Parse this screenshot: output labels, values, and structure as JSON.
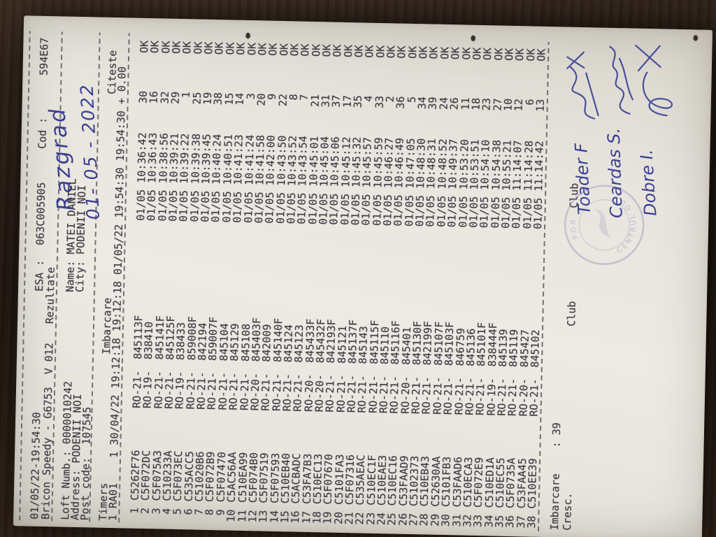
{
  "palette": {
    "table_wood": "#241a12",
    "paper": "#e8e5de",
    "print_ink": "#403e46",
    "pen_ink": "#3a3f93",
    "stamp_ink": "#8a84b4"
  },
  "header": {
    "datetime": "01/05/22-19:54:30",
    "esa_label": "ESA :",
    "esa_value": "063C005905",
    "cod_label": "Cod :",
    "cod_value": "594E67",
    "device_line": "Bricon Speedy - G6753  V 012   Rezultate",
    "loft_line": "Loft Numb.: 0000010242",
    "name_line": "Name: MATEI DANIEL",
    "address_line": "Address: PODENII NOI",
    "city_line": "City: PODENII NOI",
    "postcode_line": "Post code:  107545"
  },
  "timers": {
    "title": "Timers",
    "col_imbarcare": "Imbarcare",
    "col_citeste": "Citeste",
    "timer_row": "1 RA01    1 30/04/22 19:12:18 19:12:18 01/05/22 19:54:30 19:54:30 + 0.00"
  },
  "rows": [
    [
      "1",
      "C5262F76",
      "RO-21-",
      "845113F",
      "01/05 10:36:42",
      "30",
      "OK"
    ],
    [
      "2",
      "C5F072DC",
      "RO-19-",
      "838410",
      "01/05 10:36:43",
      "16",
      "OK"
    ],
    [
      "3",
      "C5F075A3",
      "RO-21-",
      "845141F",
      "01/05 10:38:56",
      "32",
      "OK"
    ],
    [
      "4",
      "C510233A",
      "RO-21-",
      "845125F",
      "01/05 10:39:21",
      "29",
      "OK"
    ],
    [
      "5",
      "C5F073EC",
      "RO-19-",
      "838433",
      "01/05 10:39:22",
      "1",
      "OK"
    ],
    [
      "6",
      "C535ACC5",
      "RO-21-",
      "859008F",
      "01/05 10:39:38",
      "25",
      "OK"
    ],
    [
      "7",
      "C51020B6",
      "RO-21-",
      "842194",
      "01/05 10:39:45",
      "19",
      "OK"
    ],
    [
      "8",
      "C5F072B9",
      "RO-21-",
      "859007F",
      "01/05 10:40:24",
      "38",
      "OK"
    ],
    [
      "9",
      "C5F07470",
      "RO-21-",
      "845104",
      "01/05 10:40:51",
      "15",
      "OK"
    ],
    [
      "10",
      "C5AC56AA",
      "RO-21-",
      "845129",
      "01/05 10:41:23",
      "14",
      "OK"
    ],
    [
      "11",
      "C510EA99",
      "RO-21-",
      "845108",
      "01/05 10:41:24",
      "3",
      "OK"
    ],
    [
      "12",
      "C5F074B0",
      "RO-20-",
      "845403F",
      "01/05 10:41:58",
      "20",
      "OK"
    ],
    [
      "13",
      "C5F07519",
      "RO-21-",
      "842009",
      "01/05 10:42:00",
      "9",
      "OK"
    ],
    [
      "14",
      "C5F07593",
      "RO-21-",
      "845140F",
      "01/05 10:43:50",
      "22",
      "OK"
    ],
    [
      "15",
      "C510EB40",
      "RO-21-",
      "845124",
      "01/05 10:43:52",
      "8",
      "OK"
    ],
    [
      "16",
      "C5ACBADC",
      "RO-21-",
      "845123",
      "01/05 10:43:54",
      "7",
      "OK"
    ],
    [
      "17",
      "C53FA7B3",
      "RO-20-",
      "845433F",
      "01/05 10:45:01",
      "21",
      "OK"
    ],
    [
      "18",
      "C510EC13",
      "RO-20-",
      "845432F",
      "01/05 10:45:04",
      "31",
      "OK"
    ],
    [
      "19",
      "C5F07670",
      "RO-21-",
      "842193F",
      "01/05 10:45:06",
      "37",
      "OK"
    ],
    [
      "20",
      "C5101FA3",
      "RO-21-",
      "845121",
      "01/05 10:45:12",
      "17",
      "OK"
    ],
    [
      "21",
      "C5F07316",
      "RO-21-",
      "845137F",
      "01/05 10:45:32",
      "35",
      "OK"
    ],
    [
      "22",
      "C535AEAC",
      "RO-21-",
      "845143",
      "01/05 10:45:57",
      "4",
      "OK"
    ],
    [
      "23",
      "C510EC1F",
      "RO-21-",
      "845115F",
      "01/05 10:45:59",
      "33",
      "OK"
    ],
    [
      "24",
      "C510EAE3",
      "RO-21-",
      "845110",
      "01/05 10:46:27",
      "2",
      "OK"
    ],
    [
      "25",
      "C510EC16",
      "RO-21-",
      "845116F",
      "01/05 10:46:49",
      "36",
      "OK"
    ],
    [
      "26",
      "C53FAAD9",
      "RO-20-",
      "845401",
      "01/05 10:47:05",
      "5",
      "OK"
    ],
    [
      "27",
      "C5102373",
      "RO-21-",
      "845130F",
      "01/05 10:48:30",
      "34",
      "OK"
    ],
    [
      "28",
      "C510EB43",
      "RO-21-",
      "842199F",
      "01/05 10:48:31",
      "39",
      "OK"
    ],
    [
      "29",
      "C52630AA",
      "RO-21-",
      "845107F",
      "01/05 10:48:52",
      "24",
      "OK"
    ],
    [
      "30",
      "C5101FB3",
      "RO-21-",
      "845103F",
      "01/05 10:49:37",
      "26",
      "OK"
    ],
    [
      "31",
      "C53FAAD6",
      "RO-21-",
      "846759",
      "01/05 10:53:20",
      "11",
      "OK"
    ],
    [
      "32",
      "C510ECA3",
      "RO-21-",
      "845136",
      "01/05 10:53:51",
      "18",
      "OK"
    ],
    [
      "33",
      "C5F072E9",
      "RO-21-",
      "845101F",
      "01/05 10:54:10",
      "23",
      "OK"
    ],
    [
      "34",
      "C510ED1A",
      "RO-19-",
      "838444F",
      "01/05 10:54:38",
      "27",
      "OK"
    ],
    [
      "35",
      "C510EC55",
      "RO-21-",
      "845139",
      "01/05 10:55:21",
      "10",
      "OK"
    ],
    [
      "36",
      "C5F0735A",
      "RO-21-",
      "845119",
      "01/05 11:14:07",
      "12",
      "OK"
    ],
    [
      "37",
      "C53FAA45",
      "RO-20-",
      "845427",
      "01/05 11:14:28",
      "6",
      "OK"
    ],
    [
      "38",
      "C510EE39",
      "RO-21-",
      "845102",
      "01/05 11:14:42",
      "13",
      "OK"
    ]
  ],
  "footer": {
    "imbarcare_label": "Imbarcare",
    "imbarcare_value": ": 39",
    "cresc_label": "Cresc.",
    "club1_label": "Club",
    "club2_label": "Club"
  },
  "annotations": {
    "race_place": "Razgrad",
    "race_date": "01- 05 - 2022",
    "signature_1": "Toader F",
    "signature_2": "Ceardas S.",
    "signature_3": "Dobre I.",
    "stamp_text_left": "CENTRUL OL",
    "stamp_text_right": "POR"
  }
}
